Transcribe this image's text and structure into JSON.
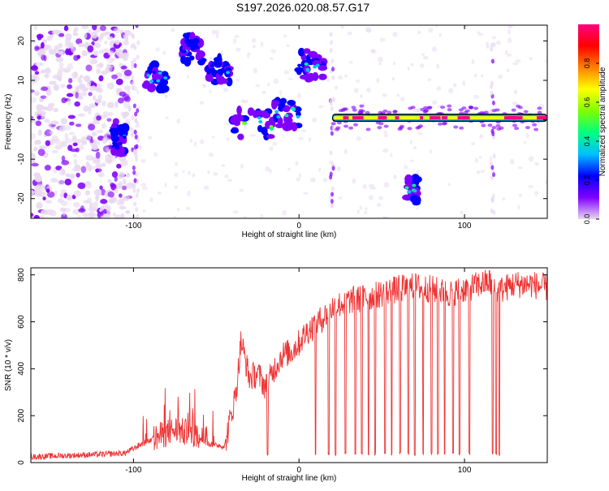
{
  "title": "S197.2026.020.08.57.G17",
  "chart_data": [
    {
      "type": "heatmap",
      "xlabel": "Height of straight line (km)",
      "ylabel": "Frequency (Hz)",
      "xlim": [
        -162,
        150
      ],
      "ylim": [
        -25,
        24
      ],
      "xticks": [
        -100,
        0,
        100
      ],
      "yticks": [
        -20,
        -10,
        0,
        10,
        20
      ],
      "colorbar": {
        "label": "Normalized spectral amplitude",
        "range": [
          0,
          1
        ],
        "ticks": [
          0.0,
          0.2,
          0.4,
          0.6,
          0.8
        ],
        "colors": [
          "#e8d8f0",
          "#8000ff",
          "#0000ff",
          "#00c0ff",
          "#00ff80",
          "#80ff00",
          "#ffff00",
          "#ff8000",
          "#ff0000",
          "#ff0080"
        ]
      },
      "features": [
        {
          "name": "carrier",
          "x": [
            20,
            150
          ],
          "y": 0.5,
          "amplitude": 0.95
        },
        {
          "name": "blob",
          "x": [
            -95,
            -80
          ],
          "y": 11,
          "amplitude": 0.35
        },
        {
          "name": "blob",
          "x": [
            -72,
            -58
          ],
          "y": 18,
          "amplitude": 0.3
        },
        {
          "name": "blob",
          "x": [
            -55,
            -42
          ],
          "y": 13,
          "amplitude": 0.3
        },
        {
          "name": "blob",
          "x": [
            -40,
            -15
          ],
          "y": -1,
          "amplitude": 0.5
        },
        {
          "name": "blob",
          "x": [
            -15,
            0
          ],
          "y": 1.5,
          "amplitude": 0.5
        },
        {
          "name": "blob",
          "x": [
            0,
            15
          ],
          "y": 14,
          "amplitude": 0.4
        },
        {
          "name": "blob",
          "x": [
            65,
            72
          ],
          "y": -18,
          "amplitude": 0.45
        },
        {
          "name": "blob",
          "x": [
            -112,
            -105
          ],
          "y": -5,
          "amplitude": 0.3
        }
      ]
    },
    {
      "type": "line",
      "xlabel": "Height of straight line (km)",
      "ylabel": "SNR (10 * v/v)",
      "xlim": [
        -162,
        150
      ],
      "ylim": [
        0,
        830
      ],
      "xticks": [
        -100,
        0,
        100
      ],
      "yticks": [
        0,
        200,
        400,
        600,
        800
      ],
      "color": "#ee3333",
      "x": [
        -162,
        -140,
        -120,
        -105,
        -95,
        -85,
        -75,
        -65,
        -55,
        -45,
        -38,
        -35,
        -30,
        -25,
        -20,
        -15,
        -10,
        -5,
        0,
        5,
        10,
        15,
        20,
        30,
        40,
        50,
        60,
        70,
        80,
        90,
        100,
        110,
        115,
        120,
        130,
        140,
        150
      ],
      "y": [
        25,
        30,
        35,
        40,
        80,
        110,
        140,
        120,
        80,
        70,
        300,
        520,
        360,
        380,
        320,
        400,
        460,
        470,
        510,
        560,
        590,
        620,
        660,
        690,
        700,
        720,
        740,
        750,
        740,
        720,
        740,
        760,
        770,
        730,
        760,
        760,
        745
      ],
      "dropouts": [
        -19,
        10,
        18,
        22,
        28,
        34,
        38,
        42,
        46,
        52,
        56,
        61,
        66,
        70,
        75,
        80,
        84,
        88,
        93,
        97,
        103,
        117,
        119,
        121
      ]
    }
  ]
}
